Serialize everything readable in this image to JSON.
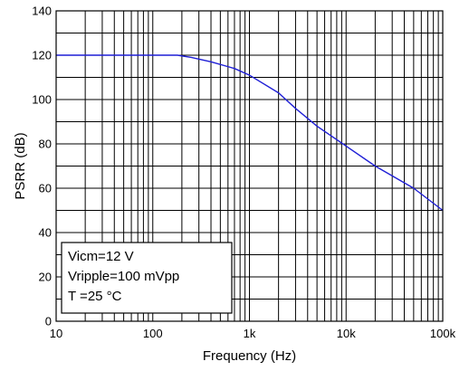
{
  "chart_data": {
    "type": "line",
    "xlabel": "Frequency (Hz)",
    "ylabel": "PSRR (dB)",
    "x_scale": "log",
    "xlim": [
      10,
      100000
    ],
    "ylim": [
      0,
      140
    ],
    "grid": true,
    "x_ticks": [
      {
        "value": 10,
        "label": "10"
      },
      {
        "value": 100,
        "label": "100"
      },
      {
        "value": 1000,
        "label": "1k"
      },
      {
        "value": 10000,
        "label": "10k"
      },
      {
        "value": 100000,
        "label": "100k"
      }
    ],
    "y_ticks": [
      {
        "value": 0,
        "label": "0"
      },
      {
        "value": 20,
        "label": "20"
      },
      {
        "value": 40,
        "label": "40"
      },
      {
        "value": 60,
        "label": "60"
      },
      {
        "value": 80,
        "label": "80"
      },
      {
        "value": 100,
        "label": "100"
      },
      {
        "value": 120,
        "label": "120"
      },
      {
        "value": 140,
        "label": "140"
      }
    ],
    "series": [
      {
        "color": "#1f1fd6",
        "x": [
          10,
          100,
          180,
          250,
          400,
          700,
          1000,
          2000,
          3000,
          5000,
          10000,
          20000,
          50000,
          100000
        ],
        "y": [
          120,
          120,
          120,
          119,
          117,
          114,
          111,
          103,
          96,
          88,
          79,
          70,
          60,
          50
        ]
      }
    ],
    "annotation": {
      "lines": [
        "Vicm=12 V",
        "Vripple=100  mVpp",
        "T =25 °C"
      ]
    }
  }
}
